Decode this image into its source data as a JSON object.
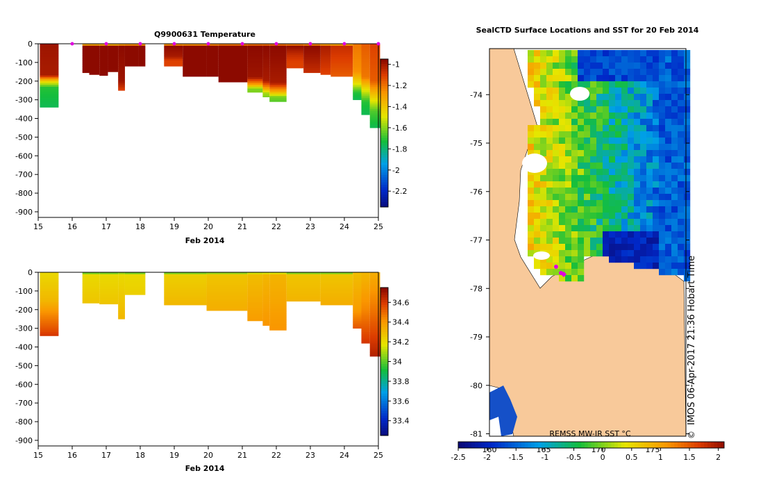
{
  "chart_data": [
    {
      "type": "heatmap",
      "title": "Q9900631  Temperature",
      "xlabel": "Feb 2014",
      "xticks": [
        "15",
        "16",
        "17",
        "18",
        "19",
        "20",
        "21",
        "22",
        "23",
        "24",
        "25"
      ],
      "xlim": [
        15,
        25
      ],
      "ylim": [
        -930,
        0
      ],
      "yticks": [
        "0",
        "-100",
        "-200",
        "-300",
        "-400",
        "-500",
        "-600",
        "-700",
        "-800",
        "-900"
      ],
      "colorbar": {
        "ticks": [
          "-1",
          "-1.2",
          "-1.4",
          "-1.6",
          "-1.8",
          "-2",
          "-2.2"
        ],
        "range": [
          -2.35,
          -0.95
        ]
      },
      "profile_marker_days": [
        16,
        17,
        18,
        19,
        20,
        21,
        22,
        23,
        24,
        25
      ],
      "profiles": [
        {
          "x0": 15.05,
          "x1": 15.6,
          "depth": 340,
          "layers": [
            [
              0,
              -0.98
            ],
            [
              170,
              -1.0
            ],
            [
              190,
              -1.3
            ],
            [
              210,
              -1.5
            ],
            [
              235,
              -1.7
            ],
            [
              340,
              -1.75
            ]
          ]
        },
        {
          "x0": 16.3,
          "x1": 16.5,
          "depth": 155,
          "layers": [
            [
              0,
              -1.65
            ],
            [
              10,
              -0.95
            ],
            [
              155,
              -0.95
            ]
          ]
        },
        {
          "x0": 16.5,
          "x1": 16.8,
          "depth": 165,
          "layers": [
            [
              0,
              -1.65
            ],
            [
              10,
              -0.95
            ],
            [
              165,
              -0.95
            ]
          ]
        },
        {
          "x0": 16.8,
          "x1": 17.05,
          "depth": 170,
          "layers": [
            [
              0,
              -1.7
            ],
            [
              10,
              -0.95
            ],
            [
              170,
              -0.95
            ]
          ]
        },
        {
          "x0": 17.05,
          "x1": 17.35,
          "depth": 150,
          "layers": [
            [
              0,
              -1.7
            ],
            [
              10,
              -0.95
            ],
            [
              150,
              -0.95
            ]
          ]
        },
        {
          "x0": 17.35,
          "x1": 17.55,
          "depth": 250,
          "layers": [
            [
              0,
              -1.6
            ],
            [
              10,
              -0.95
            ],
            [
              200,
              -0.98
            ],
            [
              230,
              -1.05
            ],
            [
              250,
              -1.1
            ]
          ]
        },
        {
          "x0": 17.55,
          "x1": 17.95,
          "depth": 120,
          "layers": [
            [
              0,
              -1.55
            ],
            [
              10,
              -0.95
            ],
            [
              120,
              -0.95
            ]
          ]
        },
        {
          "x0": 17.95,
          "x1": 18.15,
          "depth": 120,
          "layers": [
            [
              0,
              -1.6
            ],
            [
              10,
              -0.95
            ],
            [
              120,
              -0.95
            ]
          ]
        },
        {
          "x0": 18.7,
          "x1": 19.25,
          "depth": 120,
          "layers": [
            [
              0,
              -1.55
            ],
            [
              10,
              -0.95
            ],
            [
              70,
              -1.0
            ],
            [
              90,
              -1.1
            ],
            [
              120,
              -1.1
            ]
          ]
        },
        {
          "x0": 19.25,
          "x1": 19.95,
          "depth": 175,
          "layers": [
            [
              0,
              -1.55
            ],
            [
              10,
              -0.95
            ],
            [
              175,
              -0.95
            ]
          ]
        },
        {
          "x0": 19.95,
          "x1": 20.3,
          "depth": 175,
          "layers": [
            [
              0,
              -1.5
            ],
            [
              10,
              -0.95
            ],
            [
              175,
              -0.95
            ]
          ]
        },
        {
          "x0": 20.3,
          "x1": 21.15,
          "depth": 205,
          "layers": [
            [
              0,
              -1.45
            ],
            [
              10,
              -0.95
            ],
            [
              205,
              -0.95
            ]
          ]
        },
        {
          "x0": 21.15,
          "x1": 21.6,
          "depth": 260,
          "layers": [
            [
              0,
              -1.3
            ],
            [
              15,
              -0.95
            ],
            [
              180,
              -0.98
            ],
            [
              220,
              -1.3
            ],
            [
              240,
              -1.6
            ],
            [
              260,
              -1.6
            ]
          ]
        },
        {
          "x0": 21.6,
          "x1": 21.8,
          "depth": 285,
          "layers": [
            [
              0,
              -1.3
            ],
            [
              15,
              -0.95
            ],
            [
              200,
              -1.0
            ],
            [
              240,
              -1.3
            ],
            [
              265,
              -1.55
            ],
            [
              285,
              -1.6
            ]
          ]
        },
        {
          "x0": 21.8,
          "x1": 22.3,
          "depth": 310,
          "layers": [
            [
              0,
              -1.3
            ],
            [
              15,
              -0.95
            ],
            [
              210,
              -1.0
            ],
            [
              260,
              -1.35
            ],
            [
              285,
              -1.6
            ],
            [
              310,
              -1.65
            ]
          ]
        },
        {
          "x0": 22.3,
          "x1": 22.8,
          "depth": 130,
          "layers": [
            [
              0,
              -1.45
            ],
            [
              10,
              -0.95
            ],
            [
              60,
              -1.05
            ],
            [
              100,
              -1.1
            ],
            [
              130,
              -1.1
            ]
          ]
        },
        {
          "x0": 22.8,
          "x1": 23.3,
          "depth": 155,
          "layers": [
            [
              0,
              -1.5
            ],
            [
              10,
              -0.95
            ],
            [
              90,
              -1.0
            ],
            [
              155,
              -1.05
            ]
          ]
        },
        {
          "x0": 23.3,
          "x1": 23.6,
          "depth": 165,
          "layers": [
            [
              0,
              -1.55
            ],
            [
              10,
              -1.0
            ],
            [
              165,
              -1.1
            ]
          ]
        },
        {
          "x0": 23.6,
          "x1": 24.25,
          "depth": 175,
          "layers": [
            [
              0,
              -1.55
            ],
            [
              10,
              -1.05
            ],
            [
              175,
              -1.15
            ]
          ]
        },
        {
          "x0": 24.25,
          "x1": 24.5,
          "depth": 300,
          "layers": [
            [
              0,
              -1.2
            ],
            [
              150,
              -1.25
            ],
            [
              210,
              -1.45
            ],
            [
              260,
              -1.7
            ],
            [
              300,
              -1.75
            ]
          ]
        },
        {
          "x0": 24.5,
          "x1": 24.75,
          "depth": 380,
          "layers": [
            [
              0,
              -1.15
            ],
            [
              180,
              -1.2
            ],
            [
              240,
              -1.45
            ],
            [
              310,
              -1.7
            ],
            [
              380,
              -1.75
            ]
          ]
        },
        {
          "x0": 24.75,
          "x1": 25.05,
          "depth": 450,
          "layers": [
            [
              0,
              -1.1
            ],
            [
              200,
              -1.15
            ],
            [
              280,
              -1.4
            ],
            [
              360,
              -1.65
            ],
            [
              450,
              -1.75
            ]
          ]
        }
      ]
    },
    {
      "type": "heatmap",
      "title": "",
      "xlabel": "Feb 2014",
      "xticks": [
        "15",
        "16",
        "17",
        "18",
        "19",
        "20",
        "21",
        "22",
        "23",
        "24",
        "25"
      ],
      "xlim": [
        15,
        25
      ],
      "ylim": [
        -930,
        0
      ],
      "yticks": [
        "0",
        "-100",
        "-200",
        "-300",
        "-400",
        "-500",
        "-600",
        "-700",
        "-800",
        "-900"
      ],
      "colorbar": {
        "ticks": [
          "34.6",
          "34.4",
          "34.2",
          "34",
          "33.8",
          "33.6",
          "33.4"
        ],
        "range": [
          33.25,
          34.75
        ]
      },
      "profiles": [
        {
          "x0": 15.05,
          "x1": 15.6,
          "depth": 340,
          "layers": [
            [
              0,
              34.22
            ],
            [
              150,
              34.32
            ],
            [
              230,
              34.45
            ],
            [
              300,
              34.55
            ],
            [
              340,
              34.62
            ]
          ]
        },
        {
          "x0": 16.3,
          "x1": 16.8,
          "depth": 165,
          "layers": [
            [
              0,
              33.95
            ],
            [
              15,
              34.22
            ],
            [
              165,
              34.28
            ]
          ]
        },
        {
          "x0": 16.8,
          "x1": 17.35,
          "depth": 170,
          "layers": [
            [
              0,
              33.95
            ],
            [
              15,
              34.22
            ],
            [
              170,
              34.28
            ]
          ]
        },
        {
          "x0": 17.35,
          "x1": 17.55,
          "depth": 250,
          "layers": [
            [
              0,
              34.0
            ],
            [
              15,
              34.22
            ],
            [
              250,
              34.32
            ]
          ]
        },
        {
          "x0": 17.55,
          "x1": 18.15,
          "depth": 120,
          "layers": [
            [
              0,
              33.95
            ],
            [
              15,
              34.22
            ],
            [
              120,
              34.25
            ]
          ]
        },
        {
          "x0": 18.7,
          "x1": 19.95,
          "depth": 175,
          "layers": [
            [
              0,
              33.95
            ],
            [
              15,
              34.25
            ],
            [
              175,
              34.32
            ]
          ]
        },
        {
          "x0": 19.95,
          "x1": 21.15,
          "depth": 205,
          "layers": [
            [
              0,
              33.98
            ],
            [
              15,
              34.28
            ],
            [
              205,
              34.35
            ]
          ]
        },
        {
          "x0": 21.15,
          "x1": 21.6,
          "depth": 260,
          "layers": [
            [
              0,
              34.0
            ],
            [
              10,
              34.3
            ],
            [
              260,
              34.4
            ]
          ]
        },
        {
          "x0": 21.6,
          "x1": 21.8,
          "depth": 285,
          "layers": [
            [
              0,
              34.0
            ],
            [
              10,
              34.32
            ],
            [
              285,
              34.42
            ]
          ]
        },
        {
          "x0": 21.8,
          "x1": 22.3,
          "depth": 310,
          "layers": [
            [
              0,
              34.0
            ],
            [
              10,
              34.33
            ],
            [
              310,
              34.42
            ]
          ]
        },
        {
          "x0": 22.3,
          "x1": 23.3,
          "depth": 155,
          "layers": [
            [
              0,
              33.95
            ],
            [
              15,
              34.28
            ],
            [
              155,
              34.33
            ]
          ]
        },
        {
          "x0": 23.3,
          "x1": 24.25,
          "depth": 175,
          "layers": [
            [
              0,
              33.95
            ],
            [
              15,
              34.28
            ],
            [
              175,
              34.35
            ]
          ]
        },
        {
          "x0": 24.25,
          "x1": 24.5,
          "depth": 300,
          "layers": [
            [
              0,
              34.3
            ],
            [
              200,
              34.4
            ],
            [
              300,
              34.55
            ]
          ]
        },
        {
          "x0": 24.5,
          "x1": 24.75,
          "depth": 380,
          "layers": [
            [
              0,
              34.32
            ],
            [
              200,
              34.45
            ],
            [
              380,
              34.62
            ]
          ]
        },
        {
          "x0": 24.75,
          "x1": 25.05,
          "depth": 450,
          "layers": [
            [
              0,
              34.35
            ],
            [
              220,
              34.5
            ],
            [
              450,
              34.68
            ]
          ]
        }
      ]
    },
    {
      "type": "heatmap",
      "title": "SealCTD Surface Locations and SST for 20 Feb 2014",
      "yticks": [
        "-74",
        "-75",
        "-76",
        "-77",
        "-78",
        "-79",
        "-80",
        "-81"
      ],
      "ylim": [
        -81.05,
        -73.05
      ],
      "xticks": [
        "160",
        "165",
        "170",
        "175"
      ],
      "colorbar": {
        "label": "REMSS MW-IR SST °C",
        "ticks": [
          "-2.5",
          "-2",
          "-1.5",
          "-1",
          "-0.5",
          "0",
          "0.5",
          "1",
          "1.5",
          "2"
        ],
        "range": [
          -2.5,
          2.1
        ]
      },
      "credit": "IMOS 06-Apr-2017 21:36 Hobart Time",
      "copyright": "©"
    }
  ]
}
